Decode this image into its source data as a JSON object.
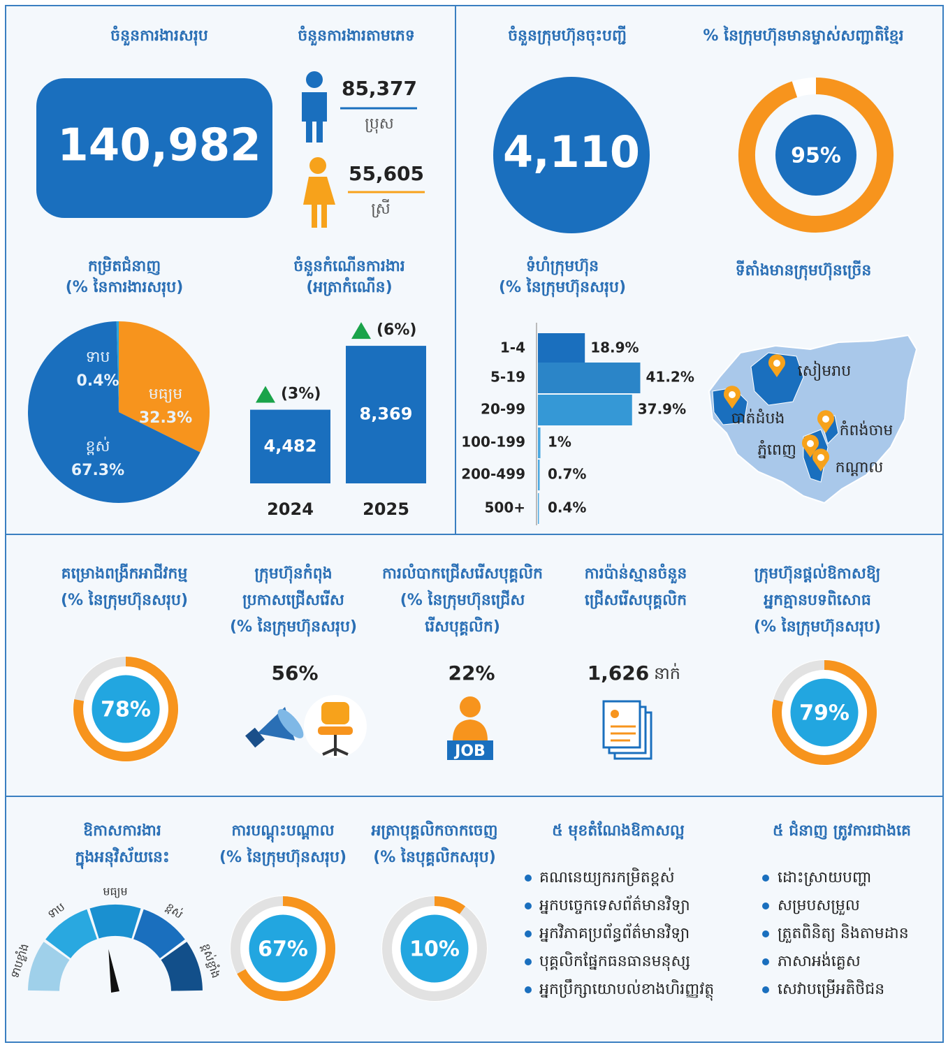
{
  "total_jobs": {
    "title": "ចំនួនការងារសរុប",
    "value": "140,982"
  },
  "jobs_by_gender": {
    "title": "ចំនួនការងារតាមភេទ",
    "male": {
      "value": "85,377",
      "label": "ប្រុស"
    },
    "female": {
      "value": "55,605",
      "label": "ស្រី"
    }
  },
  "registered_companies": {
    "title": "ចំនួនក្រុមហ៊ុនចុះបញ្ជី",
    "value": "4,110"
  },
  "khmer_owned": {
    "title": "% នៃក្រុមហ៊ុនមានម្ចាស់សញ្ជាតិខ្មែរ",
    "value": 95,
    "label": "95%"
  },
  "skill_level": {
    "type": "pie",
    "title": [
      "កម្រិតជំនាញ",
      "(% នៃការងារសរុប)"
    ],
    "categories": [
      "ទាប",
      "មធ្យម",
      "ខ្ពស់"
    ],
    "values": [
      0.4,
      32.3,
      67.3
    ],
    "value_labels": [
      "0.4%",
      "32.3%",
      "67.3%"
    ],
    "colors": [
      "#29a8e0",
      "#f7941d",
      "#1a6fbe"
    ]
  },
  "job_growth": {
    "type": "bar",
    "title": [
      "ចំនួនកំណើនការងារ",
      "(អត្រាកំណើន)"
    ],
    "categories": [
      "2024",
      "2025"
    ],
    "values": [
      4482,
      8369
    ],
    "value_labels": [
      "4,482",
      "8,369"
    ],
    "growth": [
      3,
      6
    ],
    "growth_labels": [
      "(3%)",
      "(6%)"
    ],
    "ylim": [
      0,
      8500
    ],
    "color": "#1a6fbe"
  },
  "company_size": {
    "type": "hbar",
    "title": [
      "ទំហំក្រុមហ៊ុន",
      "(% នៃក្រុមហ៊ុនសរុប)"
    ],
    "categories": [
      "1-4",
      "5-19",
      "20-99",
      "100-199",
      "200-499",
      "500+"
    ],
    "values": [
      18.9,
      41.2,
      37.9,
      1,
      0.7,
      0.4
    ],
    "value_labels": [
      "18.9%",
      "41.2%",
      "37.9%",
      "1%",
      "0.7%",
      "0.4%"
    ],
    "xlim": [
      0,
      45
    ],
    "colors": [
      "#1a6fbe",
      "#2b85c8",
      "#3598d6",
      "#4aa8e0",
      "#4aa8e0",
      "#4aa8e0"
    ]
  },
  "locations": {
    "title": "ទីតាំងមានក្រុមហ៊ុនច្រើន",
    "places": [
      "សៀមរាប",
      "បាត់ដំបង",
      "កំពង់ចាម",
      "ភ្នំពេញ",
      "កណ្ដាល"
    ]
  },
  "business_expansion": {
    "title": [
      "គម្រោងពង្រីកអាជីវកម្ម",
      "(% នៃក្រុមហ៊ុនសរុប)"
    ],
    "value": 78,
    "label": "78%"
  },
  "recruiting": {
    "title": [
      "ក្រុមហ៊ុនកំពុង",
      "ប្រកាសជ្រើសរើស",
      "(% នៃក្រុមហ៊ុនសរុប)"
    ],
    "label": "56%"
  },
  "recruit_difficulty": {
    "title": [
      "ការលំបាកជ្រើសរើសបុគ្គលិក",
      "(% នៃក្រុមហ៊ុនជ្រើស",
      "រើសបុគ្គលិក)"
    ],
    "label": "22%",
    "icon_text": "JOB"
  },
  "recruit_estimate": {
    "title": [
      "ការប៉ាន់ស្មានចំនួន",
      "ជ្រើសរើសបុគ្គលិក"
    ],
    "value": "1,626",
    "unit": "នាក់"
  },
  "no_experience": {
    "title": [
      "ក្រុមហ៊ុនផ្ដល់ឱកាសឱ្យ",
      "អ្នកគ្មានបទពិសោធ",
      "(% នៃក្រុមហ៊ុនសរុប)"
    ],
    "value": 79,
    "label": "79%"
  },
  "job_opportunity": {
    "title": [
      "ឱកាសការងារ",
      "ក្នុងអនុវិស័យនេះ"
    ],
    "levels": [
      "ទាបខ្លាំង",
      "ទាប",
      "មធ្យម",
      "ខ្ពស់",
      "ខ្ពស់ខ្លាំង"
    ]
  },
  "training": {
    "title": [
      "ការបណ្ដុះបណ្ដាល",
      "(% នៃក្រុមហ៊ុនសរុប)"
    ],
    "value": 67,
    "label": "67%"
  },
  "turnover": {
    "title": [
      "អត្រាបុគ្គលិកចាកចេញ",
      "(% នៃបុគ្គលិកសរុប)"
    ],
    "value": 10,
    "label": "10%"
  },
  "top_jobs": {
    "title": "៥ មុខតំណែងឱកាសល្អ",
    "items": [
      "គណនេយ្យករកម្រិតខ្ពស់",
      "អ្នកបច្ចេកទេសព័ត៌មានវិទ្យា",
      "អ្នកវិភាគប្រព័ន្ធព័ត៌មានវិទ្យា",
      "បុគ្គលិកផ្នែកធនធានមនុស្ស",
      "អ្នកប្រឹក្សាយោបល់ខាងហិរញ្ញវត្ថុ"
    ]
  },
  "top_skills": {
    "title": "៥ ជំនាញ ត្រូវការជាងគេ",
    "items": [
      "ដោះស្រាយបញ្ហា",
      "សម្របសម្រួល",
      "ត្រួតពិនិត្យ និងតាមដាន",
      "ភាសាអង់គ្លេស",
      "សេវាបម្រើអតិថិជន"
    ]
  }
}
